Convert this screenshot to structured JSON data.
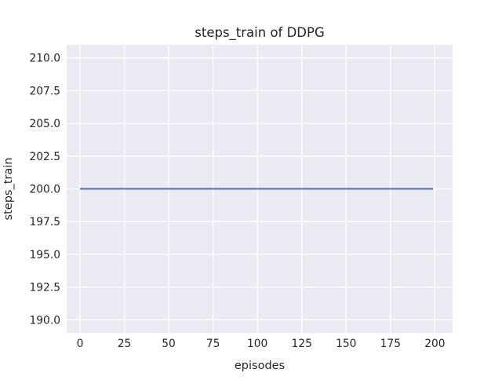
{
  "figure": {
    "background_color": "#ffffff",
    "plot_background_color": "#eaeaf2",
    "grid_color": "#ffffff",
    "text_color": "#262626",
    "line_color": "#4c72b0"
  },
  "chart_data": {
    "type": "line",
    "title": "steps_train of DDPG",
    "xlabel": "episodes",
    "ylabel": "steps_train",
    "xlim": [
      -7.5,
      210
    ],
    "ylim": [
      189,
      211
    ],
    "xticks": [
      0,
      25,
      50,
      75,
      100,
      125,
      150,
      175,
      200
    ],
    "yticks": [
      190.0,
      192.5,
      195.0,
      197.5,
      200.0,
      202.5,
      205.0,
      207.5,
      210.0
    ],
    "ytick_decimals": 1,
    "grid": true,
    "legend": false,
    "series": [
      {
        "name": "steps_train",
        "color": "#4c72b0",
        "note": "constant value 200 for every episode from 0 to 199",
        "x": [
          0,
          199
        ],
        "y": [
          200,
          200
        ]
      }
    ]
  }
}
